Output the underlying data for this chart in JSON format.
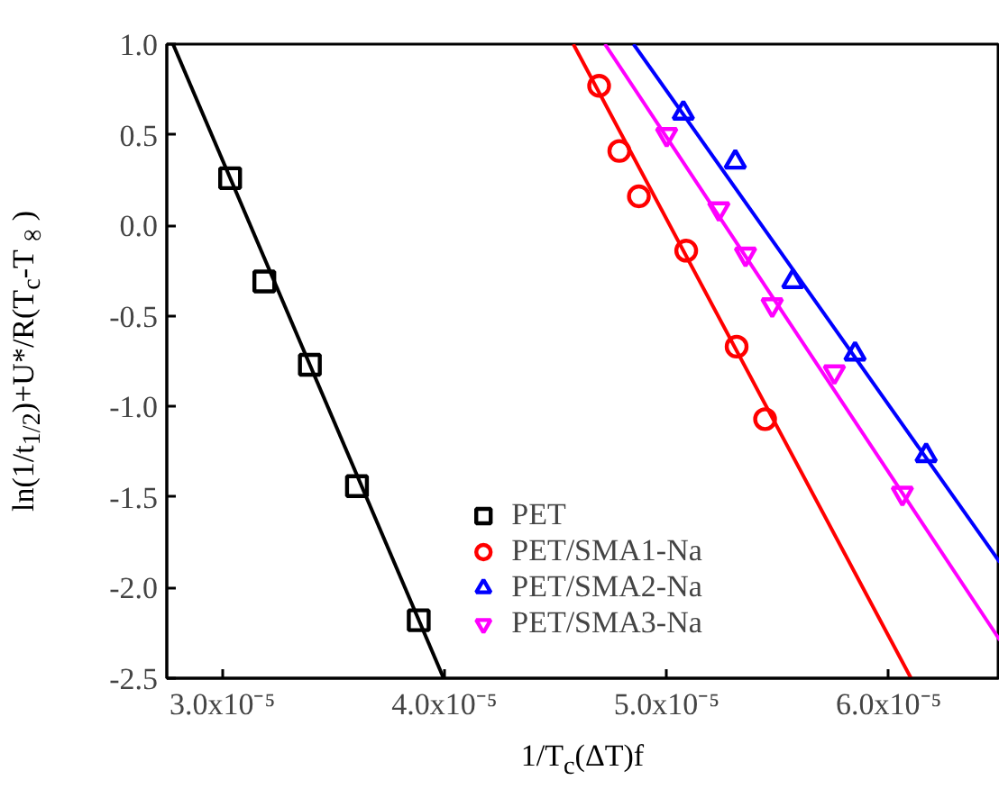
{
  "chart_data": {
    "type": "scatter",
    "xlabel": "1/T$_{c}$(ΔT)f",
    "ylabel": "ln(1/t$_{1/2}$)+U*/R(T$_{c}$-T$_{∞}$)",
    "xlim": [
      2.75e-05,
      6.5e-05
    ],
    "ylim": [
      -2.5,
      1.0
    ],
    "xticks": [
      {
        "value": 3e-05,
        "label": "3.0x10⁻⁵"
      },
      {
        "value": 4e-05,
        "label": "4.0x10⁻⁵"
      },
      {
        "value": 5e-05,
        "label": "5.0x10⁻⁵"
      },
      {
        "value": 6e-05,
        "label": "6.0x10⁻⁵"
      }
    ],
    "yticks": [
      {
        "value": -2.5,
        "label": "-2.5"
      },
      {
        "value": -2.0,
        "label": "-2.0"
      },
      {
        "value": -1.5,
        "label": "-1.5"
      },
      {
        "value": -1.0,
        "label": "-1.0"
      },
      {
        "value": -0.5,
        "label": "-0.5"
      },
      {
        "value": 0.0,
        "label": "0.0"
      },
      {
        "value": 0.5,
        "label": "0.5"
      },
      {
        "value": 1.0,
        "label": "1.0"
      }
    ],
    "grid": false,
    "legend": "bottom",
    "series": [
      {
        "name": "PET",
        "marker": "square",
        "color": "#000000",
        "x": [
          3.035e-05,
          3.189e-05,
          3.394e-05,
          3.606e-05,
          3.884e-05
        ],
        "values": [
          0.26,
          -0.31,
          -0.77,
          -1.44,
          -2.18
        ]
      },
      {
        "name": "PET/SMA1-Na",
        "marker": "circle",
        "color": "#ff0000",
        "x": [
          4.696e-05,
          4.787e-05,
          4.875e-05,
          5.088e-05,
          5.315e-05,
          5.443e-05
        ],
        "values": [
          0.77,
          0.41,
          0.16,
          -0.14,
          -0.67,
          -1.07
        ]
      },
      {
        "name": "PET/SMA2-Na",
        "marker": "triangle",
        "color": "#0000ff",
        "x": [
          5.075e-05,
          5.309e-05,
          5.568e-05,
          5.848e-05,
          6.168e-05
        ],
        "values": [
          0.62,
          0.35,
          -0.31,
          -0.71,
          -1.27
        ]
      },
      {
        "name": "PET/SMA3-Na",
        "color": "#ff00ff",
        "x": [
          5e-05,
          5.235e-05,
          5.355e-05,
          5.475e-05,
          5.755e-05,
          6.061e-05
        ],
        "values": [
          0.5,
          0.09,
          -0.16,
          -0.44,
          -0.81,
          -1.48
        ]
      },
      {
        "type": "line",
        "line_style": "solid",
        "color": "#000000",
        "x": [
          2.778e-05,
          3.996e-05
        ],
        "values": [
          1.0,
          -2.5
        ]
      },
      {
        "type": "line",
        "line_style": "solid",
        "color": "#ff0000",
        "x": [
          4.58e-05,
          6.1e-05
        ],
        "values": [
          1.0,
          -2.5
        ]
      },
      {
        "type": "line",
        "line_style": "solid",
        "color": "#0000ff",
        "x": [
          4.851e-05,
          6.5e-05
        ],
        "values": [
          1.0,
          -1.86
        ]
      },
      {
        "type": "line",
        "line_style": "solid",
        "color": "#ff00ff",
        "x": [
          4.722e-05,
          6.5e-05
        ],
        "values": [
          1.0,
          -2.29
        ]
      }
    ]
  }
}
